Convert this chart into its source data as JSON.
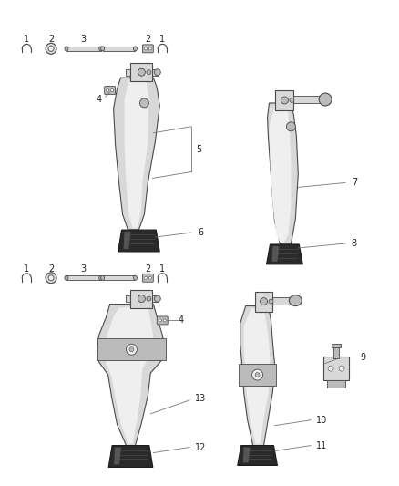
{
  "bg_color": "#ffffff",
  "line_color": "#4a4a4a",
  "dark_color": "#1a1a1a",
  "label_color": "#222222",
  "gray_fill": "#d8d8d8",
  "light_fill": "#efefef",
  "mid_fill": "#bbbbbb",
  "dark_fill": "#222222",
  "leader_color": "#777777",
  "figsize": [
    4.38,
    5.33
  ],
  "dpi": 100
}
